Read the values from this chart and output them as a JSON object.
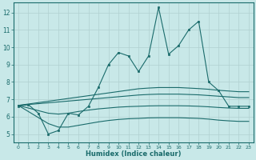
{
  "xlabel": "Humidex (Indice chaleur)",
  "bg_color": "#c8e8e8",
  "grid_color": "#b0d0d0",
  "line_color": "#1a6b6b",
  "x": [
    0,
    1,
    2,
    3,
    4,
    5,
    6,
    7,
    8,
    9,
    10,
    11,
    12,
    13,
    14,
    15,
    16,
    17,
    18,
    19,
    20,
    21,
    22,
    23
  ],
  "y_main": [
    6.6,
    6.7,
    6.2,
    5.0,
    5.2,
    6.2,
    6.1,
    6.6,
    7.7,
    9.0,
    9.7,
    9.5,
    8.6,
    9.5,
    12.3,
    9.6,
    10.1,
    11.0,
    11.5,
    8.0,
    7.5,
    6.6,
    6.6,
    6.6
  ],
  "line1": [
    6.65,
    6.73,
    6.81,
    6.89,
    6.97,
    7.05,
    7.13,
    7.21,
    7.29,
    7.37,
    7.45,
    7.53,
    7.61,
    7.65,
    7.68,
    7.68,
    7.68,
    7.65,
    7.62,
    7.58,
    7.52,
    7.48,
    7.44,
    7.44
  ],
  "line2": [
    6.65,
    6.7,
    6.75,
    6.8,
    6.85,
    6.9,
    6.95,
    7.0,
    7.05,
    7.1,
    7.15,
    7.2,
    7.25,
    7.28,
    7.3,
    7.3,
    7.3,
    7.28,
    7.26,
    7.22,
    7.18,
    7.14,
    7.1,
    7.1
  ],
  "line3": [
    6.65,
    6.5,
    6.35,
    6.2,
    6.15,
    6.2,
    6.3,
    6.38,
    6.45,
    6.5,
    6.55,
    6.58,
    6.6,
    6.62,
    6.63,
    6.63,
    6.63,
    6.62,
    6.6,
    6.57,
    6.53,
    6.5,
    6.48,
    6.48
  ],
  "line4": [
    6.65,
    6.3,
    5.95,
    5.6,
    5.4,
    5.4,
    5.5,
    5.6,
    5.7,
    5.78,
    5.84,
    5.88,
    5.9,
    5.93,
    5.94,
    5.94,
    5.94,
    5.92,
    5.9,
    5.86,
    5.8,
    5.76,
    5.73,
    5.73
  ],
  "ylim": [
    4.5,
    12.6
  ],
  "yticks": [
    5,
    6,
    7,
    8,
    9,
    10,
    11,
    12
  ],
  "xlim": [
    -0.5,
    23.5
  ]
}
